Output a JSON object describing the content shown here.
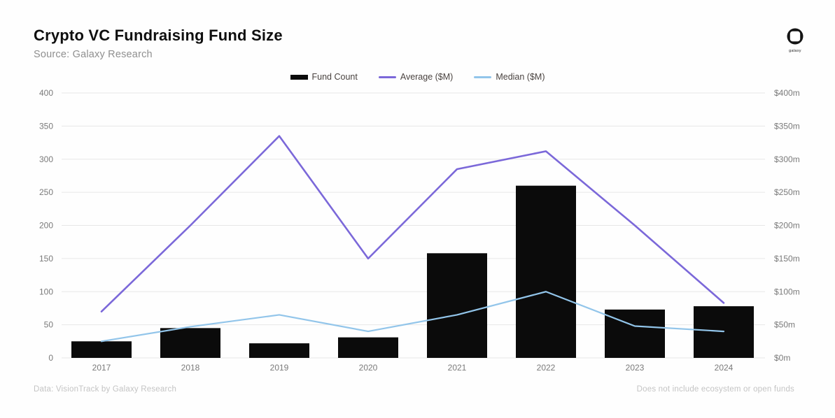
{
  "header": {
    "title": "Crypto VC Fundraising Fund Size",
    "subtitle": "Source: Galaxy Research",
    "logo_text": "galaxy"
  },
  "legend": {
    "items": [
      {
        "label": "Fund Count",
        "type": "bar",
        "color": "#0b0b0b"
      },
      {
        "label": "Average ($M)",
        "type": "line",
        "color": "#7b68d9"
      },
      {
        "label": "Median ($M)",
        "type": "line",
        "color": "#92c5ea"
      }
    ]
  },
  "footer": {
    "left": "Data: VisionTrack by Galaxy Research",
    "right": "Does not include ecosystem or open funds"
  },
  "chart_data": {
    "type": "bar",
    "title": "Crypto VC Fundraising Fund Size",
    "categories": [
      "2017",
      "2018",
      "2019",
      "2020",
      "2021",
      "2022",
      "2023",
      "2024"
    ],
    "series": [
      {
        "name": "Fund Count",
        "type": "bar",
        "axis": "left",
        "color": "#0b0b0b",
        "values": [
          25,
          45,
          22,
          31,
          158,
          260,
          73,
          78
        ]
      },
      {
        "name": "Average ($M)",
        "type": "line",
        "axis": "right",
        "color": "#7b68d9",
        "values": [
          70,
          200,
          335,
          150,
          285,
          312,
          200,
          83
        ]
      },
      {
        "name": "Median ($M)",
        "type": "line",
        "axis": "right",
        "color": "#92c5ea",
        "values": [
          25,
          47,
          65,
          40,
          65,
          100,
          48,
          40
        ]
      }
    ],
    "left_axis": {
      "range": [
        0,
        400
      ],
      "ticks": [
        0,
        50,
        100,
        150,
        200,
        250,
        300,
        350,
        400
      ]
    },
    "right_axis": {
      "range": [
        0,
        400
      ],
      "tick_labels": [
        "$0m",
        "$50m",
        "$100m",
        "$150m",
        "$200m",
        "$250m",
        "$300m",
        "$350m",
        "$400m"
      ]
    },
    "grid": true,
    "legend_position": "top-center",
    "grid_color": "#e7e7e7",
    "axis_text_color": "#7a7a7a"
  }
}
